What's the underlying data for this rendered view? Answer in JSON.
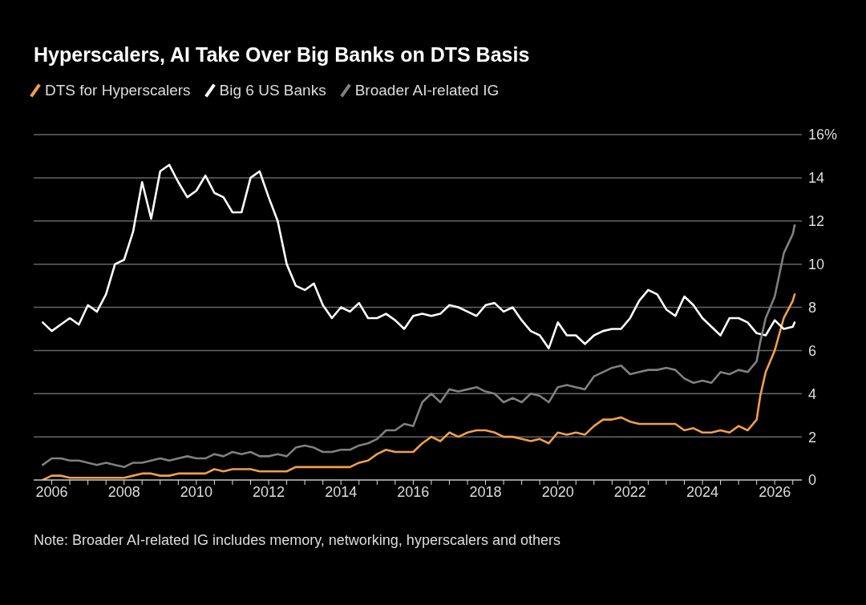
{
  "chart_data": {
    "type": "line",
    "title": "Hyperscalers, AI Take Over Big Banks on DTS Basis",
    "series": [
      {
        "name": "DTS for Hyperscalers",
        "color": "#f0a04b",
        "x": [
          2005.75,
          2006,
          2006.25,
          2006.5,
          2006.75,
          2007,
          2007.25,
          2007.5,
          2007.75,
          2008,
          2008.25,
          2008.5,
          2008.75,
          2009,
          2009.25,
          2009.5,
          2009.75,
          2010,
          2010.25,
          2010.5,
          2010.75,
          2011,
          2011.25,
          2011.5,
          2011.75,
          2012,
          2012.25,
          2012.5,
          2012.75,
          2013,
          2013.25,
          2013.5,
          2013.75,
          2014,
          2014.25,
          2014.5,
          2014.75,
          2015,
          2015.25,
          2015.5,
          2015.75,
          2016,
          2016.25,
          2016.5,
          2016.75,
          2017,
          2017.25,
          2017.5,
          2017.75,
          2018,
          2018.25,
          2018.5,
          2018.75,
          2019,
          2019.25,
          2019.5,
          2019.75,
          2020,
          2020.25,
          2020.5,
          2020.75,
          2021,
          2021.25,
          2021.5,
          2021.75,
          2022,
          2022.25,
          2022.5,
          2022.75,
          2023,
          2023.25,
          2023.5,
          2023.75,
          2024,
          2024.25,
          2024.5,
          2024.75,
          2025,
          2025.25,
          2025.5,
          2025.6,
          2025.75,
          2026,
          2026.25,
          2026.5,
          2026.55
        ],
        "values": [
          0,
          0.2,
          0.2,
          0.1,
          0.1,
          0.1,
          0.1,
          0.1,
          0.1,
          0.1,
          0.2,
          0.3,
          0.3,
          0.2,
          0.2,
          0.3,
          0.3,
          0.3,
          0.3,
          0.5,
          0.4,
          0.5,
          0.5,
          0.5,
          0.4,
          0.4,
          0.4,
          0.4,
          0.6,
          0.6,
          0.6,
          0.6,
          0.6,
          0.6,
          0.6,
          0.8,
          0.9,
          1.2,
          1.4,
          1.3,
          1.3,
          1.3,
          1.7,
          2.0,
          1.8,
          2.2,
          2.0,
          2.2,
          2.3,
          2.3,
          2.2,
          2.0,
          2.0,
          1.9,
          1.8,
          1.9,
          1.7,
          2.2,
          2.1,
          2.2,
          2.1,
          2.5,
          2.8,
          2.8,
          2.9,
          2.7,
          2.6,
          2.6,
          2.6,
          2.6,
          2.6,
          2.3,
          2.4,
          2.2,
          2.2,
          2.3,
          2.2,
          2.5,
          2.3,
          2.8,
          3.9,
          5.0,
          6.0,
          7.5,
          8.3,
          8.6
        ]
      },
      {
        "name": "Big 6 US Banks",
        "color": "#ffffff",
        "x": [
          2005.75,
          2006,
          2006.25,
          2006.5,
          2006.75,
          2007,
          2007.25,
          2007.5,
          2007.75,
          2008,
          2008.25,
          2008.5,
          2008.75,
          2009,
          2009.25,
          2009.5,
          2009.75,
          2010,
          2010.25,
          2010.5,
          2010.75,
          2011,
          2011.25,
          2011.5,
          2011.75,
          2012,
          2012.25,
          2012.5,
          2012.75,
          2013,
          2013.25,
          2013.5,
          2013.75,
          2014,
          2014.25,
          2014.5,
          2014.75,
          2015,
          2015.25,
          2015.5,
          2015.75,
          2016,
          2016.25,
          2016.5,
          2016.75,
          2017,
          2017.25,
          2017.5,
          2017.75,
          2018,
          2018.25,
          2018.5,
          2018.75,
          2019,
          2019.25,
          2019.5,
          2019.75,
          2020,
          2020.25,
          2020.5,
          2020.75,
          2021,
          2021.25,
          2021.5,
          2021.75,
          2022,
          2022.25,
          2022.5,
          2022.75,
          2023,
          2023.25,
          2023.5,
          2023.75,
          2024,
          2024.25,
          2024.5,
          2024.75,
          2025,
          2025.25,
          2025.5,
          2025.75,
          2026,
          2026.25,
          2026.5,
          2026.55
        ],
        "values": [
          7.3,
          6.9,
          7.2,
          7.5,
          7.2,
          8.1,
          7.8,
          8.6,
          10.0,
          10.2,
          11.5,
          13.8,
          12.1,
          14.3,
          14.6,
          13.8,
          13.1,
          13.4,
          14.1,
          13.3,
          13.1,
          12.4,
          12.4,
          14.0,
          14.3,
          13.1,
          12.0,
          10.0,
          9.0,
          8.8,
          9.1,
          8.1,
          7.5,
          8.0,
          7.8,
          8.2,
          7.5,
          7.5,
          7.7,
          7.4,
          7.0,
          7.6,
          7.7,
          7.6,
          7.7,
          8.1,
          8.0,
          7.8,
          7.6,
          8.1,
          8.2,
          7.8,
          8.0,
          7.4,
          6.9,
          6.7,
          6.1,
          7.3,
          6.7,
          6.7,
          6.3,
          6.7,
          6.9,
          7.0,
          7.0,
          7.5,
          8.3,
          8.8,
          8.6,
          7.9,
          7.6,
          8.5,
          8.1,
          7.5,
          7.1,
          6.7,
          7.5,
          7.5,
          7.3,
          6.8,
          6.7,
          7.4,
          7.0,
          7.1,
          7.3
        ]
      },
      {
        "name": "Broader AI-related IG",
        "color": "#808080",
        "x": [
          2005.75,
          2006,
          2006.25,
          2006.5,
          2006.75,
          2007,
          2007.25,
          2007.5,
          2007.75,
          2008,
          2008.25,
          2008.5,
          2008.75,
          2009,
          2009.25,
          2009.5,
          2009.75,
          2010,
          2010.25,
          2010.5,
          2010.75,
          2011,
          2011.25,
          2011.5,
          2011.75,
          2012,
          2012.25,
          2012.5,
          2012.75,
          2013,
          2013.25,
          2013.5,
          2013.75,
          2014,
          2014.25,
          2014.5,
          2014.75,
          2015,
          2015.25,
          2015.5,
          2015.75,
          2016,
          2016.25,
          2016.5,
          2016.75,
          2017,
          2017.25,
          2017.5,
          2017.75,
          2018,
          2018.25,
          2018.5,
          2018.75,
          2019,
          2019.25,
          2019.5,
          2019.75,
          2020,
          2020.25,
          2020.5,
          2020.75,
          2021,
          2021.25,
          2021.5,
          2021.75,
          2022,
          2022.25,
          2022.5,
          2022.75,
          2023,
          2023.25,
          2023.5,
          2023.75,
          2024,
          2024.25,
          2024.5,
          2024.75,
          2025,
          2025.25,
          2025.5,
          2025.6,
          2025.75,
          2026,
          2026.25,
          2026.5,
          2026.55
        ],
        "values": [
          0.7,
          1.0,
          1.0,
          0.9,
          0.9,
          0.8,
          0.7,
          0.8,
          0.7,
          0.6,
          0.8,
          0.8,
          0.9,
          1.0,
          0.9,
          1.0,
          1.1,
          1.0,
          1.0,
          1.2,
          1.1,
          1.3,
          1.2,
          1.3,
          1.1,
          1.1,
          1.2,
          1.1,
          1.5,
          1.6,
          1.5,
          1.3,
          1.3,
          1.4,
          1.4,
          1.6,
          1.7,
          1.9,
          2.3,
          2.3,
          2.6,
          2.5,
          3.6,
          4.0,
          3.6,
          4.2,
          4.1,
          4.2,
          4.3,
          4.1,
          4.0,
          3.6,
          3.8,
          3.6,
          4.0,
          3.9,
          3.6,
          4.3,
          4.4,
          4.3,
          4.2,
          4.8,
          5.0,
          5.2,
          5.3,
          4.9,
          5.0,
          5.1,
          5.1,
          5.2,
          5.1,
          4.7,
          4.5,
          4.6,
          4.5,
          5.0,
          4.9,
          5.1,
          5.0,
          5.5,
          6.4,
          7.5,
          8.5,
          10.5,
          11.4,
          11.8
        ]
      }
    ],
    "xlim": [
      2005.5,
      2026.75
    ],
    "xticks": [
      2006,
      {
        "value": 2006.5,
        "label": null
      },
      {
        "value": 2007,
        "label": null
      },
      {
        "value": 2007.5,
        "label": null
      },
      2008,
      {
        "value": 2008.5,
        "label": null
      },
      {
        "value": 2009,
        "label": null
      },
      {
        "value": 2009.5,
        "label": null
      },
      2010,
      {
        "value": 2010.5,
        "label": null
      },
      {
        "value": 2011,
        "label": null
      },
      {
        "value": 2011.5,
        "label": null
      },
      2012,
      {
        "value": 2012.5,
        "label": null
      },
      {
        "value": 2013,
        "label": null
      },
      {
        "value": 2013.5,
        "label": null
      },
      2014,
      {
        "value": 2014.5,
        "label": null
      },
      {
        "value": 2015,
        "label": null
      },
      {
        "value": 2015.5,
        "label": null
      },
      2016,
      {
        "value": 2016.5,
        "label": null
      },
      {
        "value": 2017,
        "label": null
      },
      {
        "value": 2017.5,
        "label": null
      },
      2018,
      {
        "value": 2018.5,
        "label": null
      },
      {
        "value": 2019,
        "label": null
      },
      {
        "value": 2019.5,
        "label": null
      },
      2020,
      {
        "value": 2020.5,
        "label": null
      },
      {
        "value": 2021,
        "label": null
      },
      {
        "value": 2021.5,
        "label": null
      },
      2022,
      {
        "value": 2022.5,
        "label": null
      },
      {
        "value": 2023,
        "label": null
      },
      {
        "value": 2023.5,
        "label": null
      },
      2024,
      {
        "value": 2024.5,
        "label": null
      },
      {
        "value": 2025,
        "label": null
      },
      {
        "value": 2025.5,
        "label": null
      },
      2026,
      {
        "value": 2026.5,
        "label": null
      }
    ],
    "ylim": [
      0,
      16
    ],
    "yticks": [
      0,
      2,
      4,
      6,
      8,
      10,
      12,
      14,
      {
        "value": 16,
        "label": "16%"
      }
    ],
    "grid": "y",
    "legend": "top left",
    "marker": "none",
    "line_style": "solid",
    "annotations": [
      "Note: Broader AI-related IG includes memory, networking, hyperscalers and others"
    ]
  }
}
